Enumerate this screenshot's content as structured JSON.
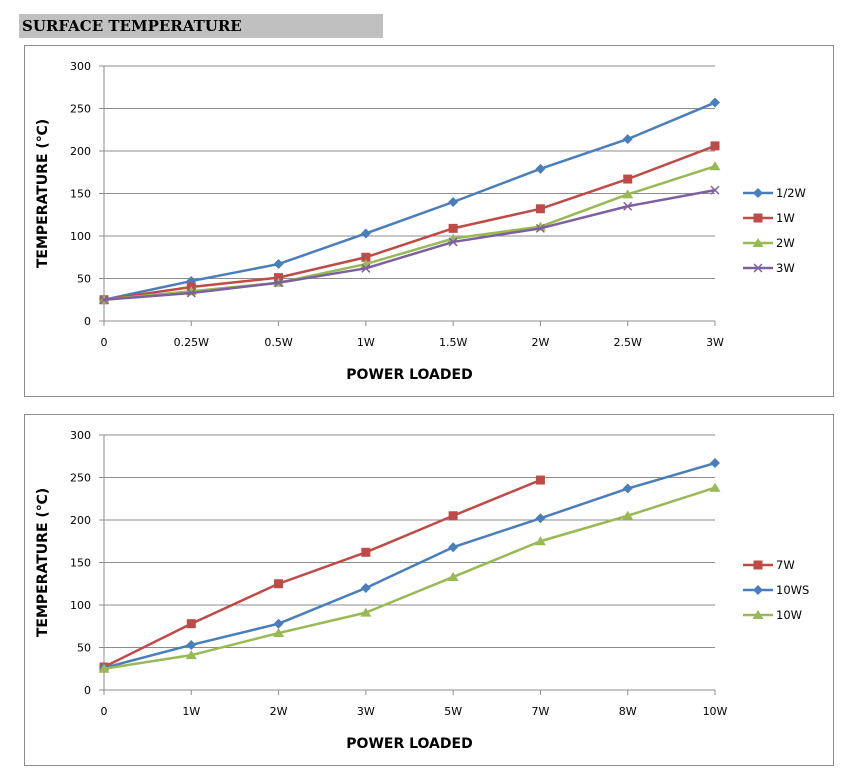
{
  "page": {
    "title": "SURFACE TEMPERATURE"
  },
  "chart_data": [
    {
      "type": "line",
      "title": "",
      "xlabel": "POWER LOADED",
      "ylabel": "TEMPERATURE (℃)",
      "categories": [
        "0",
        "0.25W",
        "0.5W",
        "1W",
        "1.5W",
        "2W",
        "2.5W",
        "3W"
      ],
      "ylim": [
        0,
        300
      ],
      "yticks": [
        0,
        50,
        100,
        150,
        200,
        250,
        300
      ],
      "grid": true,
      "legend": "right",
      "series": [
        {
          "name": "1/2W",
          "color": "#4a7ebb",
          "marker": "diamond",
          "values": [
            25,
            47,
            67,
            103,
            140,
            179,
            214,
            257
          ]
        },
        {
          "name": "1W",
          "color": "#be4b48",
          "marker": "square",
          "values": [
            25,
            40,
            51,
            75,
            109,
            132,
            167,
            206
          ]
        },
        {
          "name": "2W",
          "color": "#98b954",
          "marker": "triangle",
          "values": [
            25,
            35,
            45,
            67,
            97,
            111,
            149,
            182
          ]
        },
        {
          "name": "3W",
          "color": "#7d60a0",
          "marker": "x",
          "values": [
            25,
            33,
            45,
            62,
            93,
            109,
            135,
            154
          ]
        }
      ]
    },
    {
      "type": "line",
      "title": "",
      "xlabel": "POWER LOADED",
      "ylabel": "TEMPERATURE (℃)",
      "categories": [
        "0",
        "1W",
        "2W",
        "3W",
        "5W",
        "7W",
        "8W",
        "10W"
      ],
      "ylim": [
        0,
        300
      ],
      "yticks": [
        0,
        50,
        100,
        150,
        200,
        250,
        300
      ],
      "grid": true,
      "legend": "right",
      "series": [
        {
          "name": "7W",
          "color": "#be4b48",
          "marker": "square",
          "values": [
            27,
            78,
            125,
            162,
            205,
            247,
            null,
            null
          ]
        },
        {
          "name": "10WS",
          "color": "#4a7ebb",
          "marker": "diamond",
          "values": [
            26,
            53,
            78,
            120,
            168,
            202,
            237,
            267
          ]
        },
        {
          "name": "10W",
          "color": "#98b954",
          "marker": "triangle",
          "values": [
            25,
            41,
            67,
            91,
            133,
            175,
            205,
            238
          ]
        }
      ]
    }
  ]
}
